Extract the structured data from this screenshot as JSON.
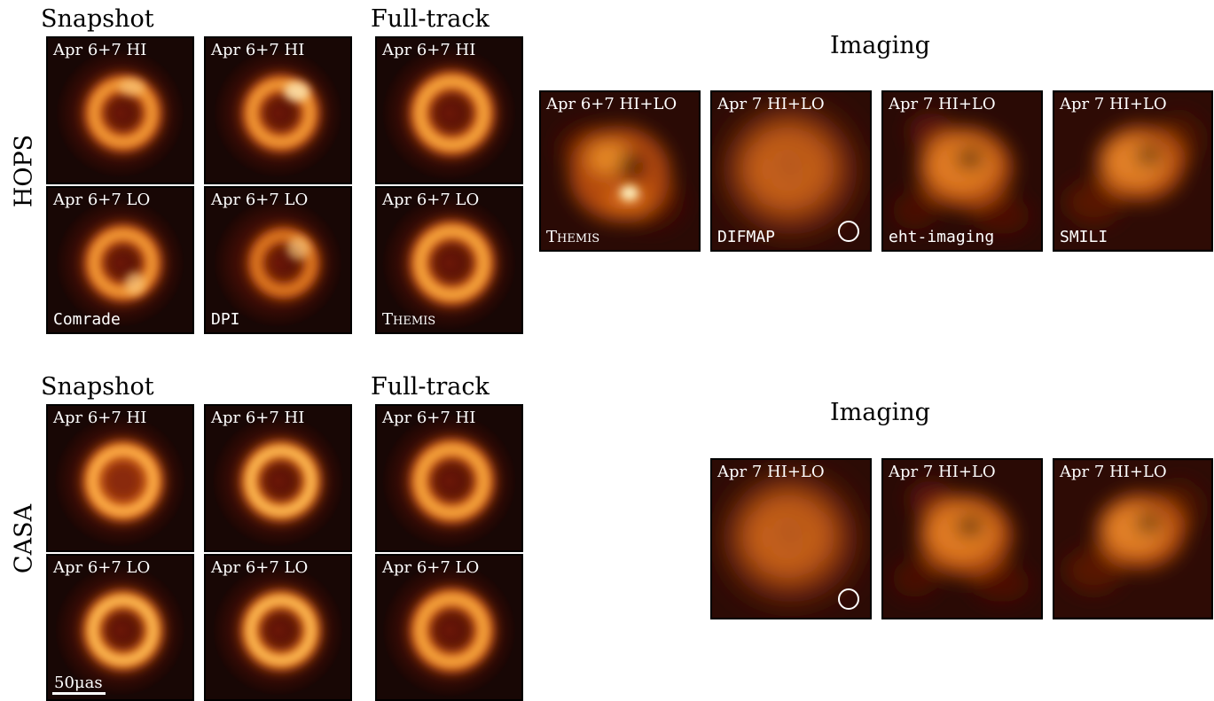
{
  "top": {
    "row_label": "HOPS",
    "snapshot_heading": "Snapshot",
    "fulltrack_heading": "Full-track",
    "imaging_heading": "Imaging",
    "snapshot_panels": [
      {
        "label": "Apr 6+7 HI",
        "method": ""
      },
      {
        "label": "Apr 6+7 HI",
        "method": ""
      },
      {
        "label": "Apr 6+7 LO",
        "method": "Comrade"
      },
      {
        "label": "Apr 6+7 LO",
        "method": "DPI"
      }
    ],
    "fulltrack_panels": [
      {
        "label": "Apr 6+7 HI",
        "method": ""
      },
      {
        "label": "Apr 6+7 LO",
        "method": "Themis"
      }
    ],
    "imaging_panels": [
      {
        "label": "Apr 6+7 HI+LO",
        "method": "Themis"
      },
      {
        "label": "Apr 7 HI+LO",
        "method": "DIFMAP"
      },
      {
        "label": "Apr 7 HI+LO",
        "method": "eht-imaging"
      },
      {
        "label": "Apr 7 HI+LO",
        "method": "SMILI"
      }
    ]
  },
  "bottom": {
    "row_label": "CASA",
    "snapshot_heading": "Snapshot",
    "fulltrack_heading": "Full-track",
    "imaging_heading": "Imaging",
    "snapshot_panels": [
      {
        "label": "Apr 6+7 HI"
      },
      {
        "label": "Apr 6+7 HI"
      },
      {
        "label": "Apr 6+7 LO"
      },
      {
        "label": "Apr 6+7 LO"
      }
    ],
    "fulltrack_panels": [
      {
        "label": "Apr 6+7 HI"
      },
      {
        "label": "Apr 6+7 LO"
      }
    ],
    "imaging_panels": [
      {
        "label": "Apr 7 HI+LO"
      },
      {
        "label": "Apr 7 HI+LO"
      },
      {
        "label": "Apr 7 HI+LO"
      }
    ],
    "scale_bar": "50μas"
  },
  "colors": {
    "background_dark": "#180705",
    "ring_bright": "#ffd37a",
    "ring_mid": "#e67a1c",
    "halo": "#6a1607"
  }
}
